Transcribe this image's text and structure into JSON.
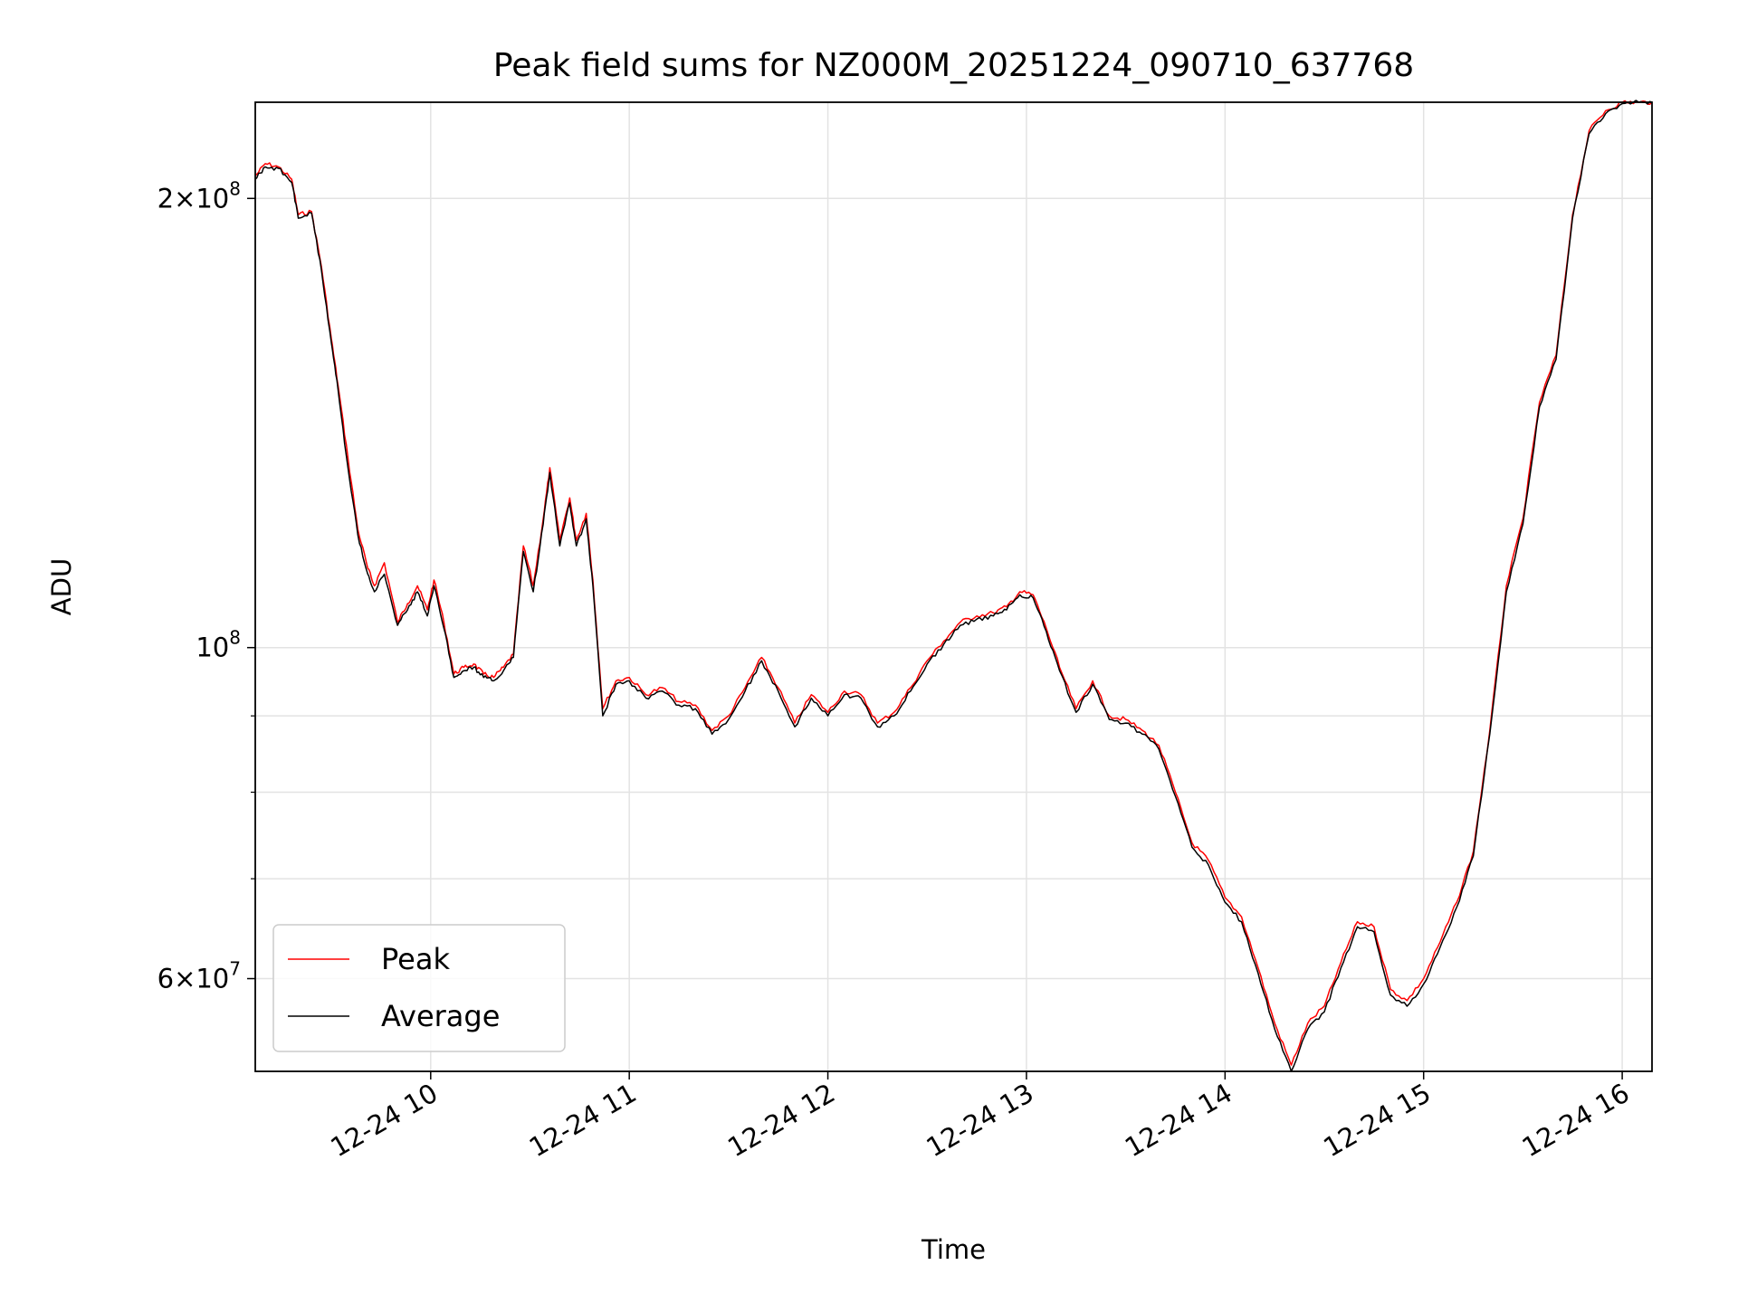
{
  "chart_data": {
    "type": "line",
    "title": "Peak field sums for NZ000M_20251224_090710_637768",
    "xlabel": "Time",
    "ylabel": "ADU",
    "yscale": "log",
    "ylim": [
      52000000,
      232000000
    ],
    "xlim": [
      "2025-12-24 09:07",
      "2025-12-24 16:09"
    ],
    "grid": true,
    "legend_position": "lower-left",
    "x_ticks": [
      {
        "time": "2025-12-24 10:00",
        "label": "12-24 10"
      },
      {
        "time": "2025-12-24 11:00",
        "label": "12-24 11"
      },
      {
        "time": "2025-12-24 12:00",
        "label": "12-24 12"
      },
      {
        "time": "2025-12-24 13:00",
        "label": "12-24 13"
      },
      {
        "time": "2025-12-24 14:00",
        "label": "12-24 14"
      },
      {
        "time": "2025-12-24 15:00",
        "label": "12-24 15"
      },
      {
        "time": "2025-12-24 16:00",
        "label": "12-24 16"
      }
    ],
    "y_major_ticks": [
      {
        "value": 60000000,
        "mantissa": "6",
        "exp": "7"
      },
      {
        "value": 100000000,
        "mantissa": "",
        "exp": "8"
      },
      {
        "value": 200000000,
        "mantissa": "2",
        "exp": "8"
      }
    ],
    "y_minor_ticks": [
      70000000,
      80000000,
      90000000
    ],
    "series": [
      {
        "name": "Peak",
        "color": "#ff0000",
        "x": [
          "2025-12-24 09:07",
          "2025-12-24 09:10",
          "2025-12-24 09:14",
          "2025-12-24 09:18",
          "2025-12-24 09:20",
          "2025-12-24 09:24",
          "2025-12-24 09:27",
          "2025-12-24 09:30",
          "2025-12-24 09:32",
          "2025-12-24 09:35",
          "2025-12-24 09:38",
          "2025-12-24 09:41",
          "2025-12-24 09:43",
          "2025-12-24 09:46",
          "2025-12-24 09:50",
          "2025-12-24 09:53",
          "2025-12-24 09:56",
          "2025-12-24 09:59",
          "2025-12-24 10:01",
          "2025-12-24 10:04",
          "2025-12-24 10:07",
          "2025-12-24 10:10",
          "2025-12-24 10:13",
          "2025-12-24 10:16",
          "2025-12-24 10:19",
          "2025-12-24 10:22",
          "2025-12-24 10:25",
          "2025-12-24 10:28",
          "2025-12-24 10:31",
          "2025-12-24 10:34",
          "2025-12-24 10:36",
          "2025-12-24 10:39",
          "2025-12-24 10:42",
          "2025-12-24 10:44",
          "2025-12-24 10:47",
          "2025-12-24 10:49",
          "2025-12-24 10:52",
          "2025-12-24 10:56",
          "2025-12-24 11:00",
          "2025-12-24 11:05",
          "2025-12-24 11:10",
          "2025-12-24 11:15",
          "2025-12-24 11:20",
          "2025-12-24 11:25",
          "2025-12-24 11:30",
          "2025-12-24 11:35",
          "2025-12-24 11:40",
          "2025-12-24 11:45",
          "2025-12-24 11:50",
          "2025-12-24 11:55",
          "2025-12-24 12:00",
          "2025-12-24 12:05",
          "2025-12-24 12:10",
          "2025-12-24 12:15",
          "2025-12-24 12:20",
          "2025-12-24 12:25",
          "2025-12-24 12:30",
          "2025-12-24 12:35",
          "2025-12-24 12:40",
          "2025-12-24 12:45",
          "2025-12-24 12:50",
          "2025-12-24 12:54",
          "2025-12-24 12:58",
          "2025-12-24 13:02",
          "2025-12-24 13:06",
          "2025-12-24 13:10",
          "2025-12-24 13:15",
          "2025-12-24 13:20",
          "2025-12-24 13:25",
          "2025-12-24 13:30",
          "2025-12-24 13:35",
          "2025-12-24 13:40",
          "2025-12-24 13:45",
          "2025-12-24 13:50",
          "2025-12-24 13:55",
          "2025-12-24 14:00",
          "2025-12-24 14:05",
          "2025-12-24 14:10",
          "2025-12-24 14:15",
          "2025-12-24 14:20",
          "2025-12-24 14:25",
          "2025-12-24 14:30",
          "2025-12-24 14:35",
          "2025-12-24 14:40",
          "2025-12-24 14:45",
          "2025-12-24 14:50",
          "2025-12-24 14:55",
          "2025-12-24 15:00",
          "2025-12-24 15:05",
          "2025-12-24 15:10",
          "2025-12-24 15:15",
          "2025-12-24 15:20",
          "2025-12-24 15:25",
          "2025-12-24 15:30",
          "2025-12-24 15:35",
          "2025-12-24 15:40",
          "2025-12-24 15:45",
          "2025-12-24 15:50",
          "2025-12-24 15:55",
          "2025-12-24 16:00",
          "2025-12-24 16:05",
          "2025-12-24 16:09"
        ],
        "values": [
          207000000,
          211000000,
          210000000,
          206000000,
          195000000,
          196000000,
          180000000,
          161000000,
          150000000,
          134000000,
          120000000,
          113000000,
          110000000,
          114000000,
          104000000,
          107000000,
          110000000,
          106000000,
          111000000,
          104000000,
          96000000,
          97000000,
          97500000,
          96000000,
          95500000,
          97000000,
          99000000,
          117000000,
          110000000,
          122000000,
          132000000,
          118000000,
          126000000,
          118000000,
          123000000,
          111000000,
          91000000,
          95000000,
          95500000,
          93000000,
          94000000,
          92000000,
          91500000,
          88000000,
          90000000,
          94000000,
          98500000,
          94000000,
          89000000,
          93000000,
          90500000,
          93500000,
          93000000,
          89000000,
          90500000,
          94000000,
          98000000,
          101000000,
          104000000,
          105000000,
          105500000,
          106500000,
          109000000,
          108500000,
          103000000,
          97000000,
          91000000,
          95000000,
          90000000,
          89500000,
          88000000,
          86000000,
          80000000,
          74000000,
          72000000,
          68000000,
          66000000,
          61000000,
          56000000,
          52500000,
          56000000,
          57500000,
          61500000,
          65500000,
          65000000,
          59000000,
          58000000,
          60000000,
          63500000,
          67500000,
          73000000,
          88000000,
          110000000,
          122000000,
          146000000,
          157000000,
          195000000,
          222000000,
          229000000,
          232000000,
          232000000,
          232000000
        ]
      },
      {
        "name": "Average",
        "color": "#000000",
        "x": [
          "2025-12-24 09:07",
          "2025-12-24 09:10",
          "2025-12-24 09:14",
          "2025-12-24 09:18",
          "2025-12-24 09:20",
          "2025-12-24 09:24",
          "2025-12-24 09:27",
          "2025-12-24 09:30",
          "2025-12-24 09:32",
          "2025-12-24 09:35",
          "2025-12-24 09:38",
          "2025-12-24 09:41",
          "2025-12-24 09:43",
          "2025-12-24 09:46",
          "2025-12-24 09:50",
          "2025-12-24 09:53",
          "2025-12-24 09:56",
          "2025-12-24 09:59",
          "2025-12-24 10:01",
          "2025-12-24 10:04",
          "2025-12-24 10:07",
          "2025-12-24 10:10",
          "2025-12-24 10:13",
          "2025-12-24 10:16",
          "2025-12-24 10:19",
          "2025-12-24 10:22",
          "2025-12-24 10:25",
          "2025-12-24 10:28",
          "2025-12-24 10:31",
          "2025-12-24 10:34",
          "2025-12-24 10:36",
          "2025-12-24 10:39",
          "2025-12-24 10:42",
          "2025-12-24 10:44",
          "2025-12-24 10:47",
          "2025-12-24 10:49",
          "2025-12-24 10:52",
          "2025-12-24 10:56",
          "2025-12-24 11:00",
          "2025-12-24 11:05",
          "2025-12-24 11:10",
          "2025-12-24 11:15",
          "2025-12-24 11:20",
          "2025-12-24 11:25",
          "2025-12-24 11:30",
          "2025-12-24 11:35",
          "2025-12-24 11:40",
          "2025-12-24 11:45",
          "2025-12-24 11:50",
          "2025-12-24 11:55",
          "2025-12-24 12:00",
          "2025-12-24 12:05",
          "2025-12-24 12:10",
          "2025-12-24 12:15",
          "2025-12-24 12:20",
          "2025-12-24 12:25",
          "2025-12-24 12:30",
          "2025-12-24 12:35",
          "2025-12-24 12:40",
          "2025-12-24 12:45",
          "2025-12-24 12:50",
          "2025-12-24 12:54",
          "2025-12-24 12:58",
          "2025-12-24 13:02",
          "2025-12-24 13:06",
          "2025-12-24 13:10",
          "2025-12-24 13:15",
          "2025-12-24 13:20",
          "2025-12-24 13:25",
          "2025-12-24 13:30",
          "2025-12-24 13:35",
          "2025-12-24 13:40",
          "2025-12-24 13:45",
          "2025-12-24 13:50",
          "2025-12-24 13:55",
          "2025-12-24 14:00",
          "2025-12-24 14:05",
          "2025-12-24 14:10",
          "2025-12-24 14:15",
          "2025-12-24 14:20",
          "2025-12-24 14:25",
          "2025-12-24 14:30",
          "2025-12-24 14:35",
          "2025-12-24 14:40",
          "2025-12-24 14:45",
          "2025-12-24 14:50",
          "2025-12-24 14:55",
          "2025-12-24 15:00",
          "2025-12-24 15:05",
          "2025-12-24 15:10",
          "2025-12-24 15:15",
          "2025-12-24 15:20",
          "2025-12-24 15:25",
          "2025-12-24 15:30",
          "2025-12-24 15:35",
          "2025-12-24 15:40",
          "2025-12-24 15:45",
          "2025-12-24 15:50",
          "2025-12-24 15:55",
          "2025-12-24 16:00",
          "2025-12-24 16:05",
          "2025-12-24 16:09"
        ],
        "values": [
          206000000,
          210000000,
          209500000,
          205000000,
          194000000,
          195500000,
          179000000,
          160000000,
          149000000,
          132000000,
          119000000,
          112000000,
          109000000,
          112000000,
          103500000,
          106000000,
          109000000,
          105000000,
          110000000,
          103000000,
          95500000,
          96500000,
          97000000,
          95500000,
          95000000,
          96500000,
          98500000,
          116000000,
          109000000,
          121000000,
          131000000,
          117000000,
          125000000,
          117000000,
          122000000,
          110000000,
          90000000,
          94500000,
          95000000,
          92500000,
          93500000,
          91500000,
          91000000,
          87500000,
          89500000,
          93500000,
          98000000,
          93500000,
          88500000,
          92500000,
          90000000,
          93000000,
          92500000,
          88500000,
          90000000,
          93500000,
          97500000,
          100500000,
          103500000,
          104500000,
          105000000,
          106000000,
          108500000,
          108000000,
          102500000,
          96500000,
          90500000,
          94500000,
          89500000,
          89000000,
          87500000,
          85500000,
          79500000,
          73500000,
          71500000,
          67500000,
          65500000,
          60500000,
          55500000,
          52000000,
          55500000,
          57000000,
          61000000,
          65000000,
          64500000,
          58500000,
          57500000,
          59500000,
          63000000,
          67000000,
          72500000,
          87500000,
          109000000,
          121000000,
          145000000,
          156000000,
          194000000,
          221000000,
          228000000,
          231500000,
          232000000,
          232000000
        ]
      }
    ]
  }
}
